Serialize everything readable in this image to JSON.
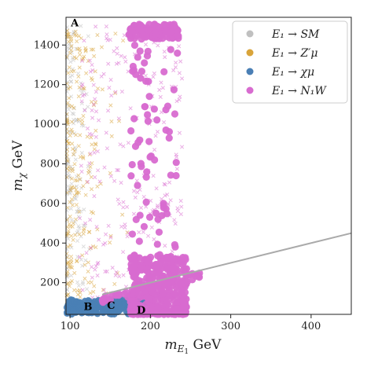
{
  "chart_data": {
    "type": "scatter",
    "xlabel": "m_{E_1} GeV",
    "ylabel": "m_χ GeV",
    "xlim": [
      95,
      450
    ],
    "ylim": [
      40,
      1540
    ],
    "xticks": [
      100,
      200,
      300,
      400
    ],
    "yticks": [
      200,
      400,
      600,
      800,
      1000,
      1200,
      1400
    ],
    "grid": false,
    "legend": {
      "placement": "top-right",
      "entries": [
        {
          "label": "E₁ → SM",
          "color": "#c0c0c0"
        },
        {
          "label": "E₁ → Z′μ",
          "color": "#d9a43a"
        },
        {
          "label": "E₁ → χμ",
          "color": "#4a7fb5"
        },
        {
          "label": "E₁ → N₁W",
          "color": "#d86cd0"
        }
      ]
    },
    "line": {
      "name": "",
      "color": "#aaaaaa",
      "x": [
        140,
        450
      ],
      "y": [
        140,
        450
      ]
    },
    "annotations": [
      {
        "text": "A",
        "x": 101,
        "y": 1495
      },
      {
        "text": "B",
        "x": 117,
        "y": 62
      },
      {
        "text": "C",
        "x": 146,
        "y": 67
      },
      {
        "text": "D",
        "x": 183,
        "y": 43
      }
    ],
    "series": [
      {
        "name": "E₁ → SM",
        "color": "#c0c0c0",
        "marker": "x",
        "region": {
          "x": [
            96,
            125
          ],
          "y": [
            40,
            1500
          ]
        },
        "count": 160
      },
      {
        "name": "E₁ → Z′μ",
        "color": "#d9a43a",
        "marker": "x",
        "region": {
          "x": [
            96,
            135
          ],
          "y": [
            40,
            1500
          ]
        },
        "count": 230
      },
      {
        "name": "E₁ → Z′μ (x>125)",
        "color": "#d9a43a",
        "marker": "x",
        "region": {
          "x": [
            125,
            175
          ],
          "y": [
            100,
            1500
          ]
        },
        "count": 25
      },
      {
        "name": "E₁ → N₁W (crosses)",
        "color": "#d86cd0",
        "marker": "x",
        "region": {
          "x": [
            110,
            240
          ],
          "y": [
            80,
            1500
          ]
        },
        "count": 260
      },
      {
        "name": "E₁ → χμ",
        "color": "#4a7fb5",
        "marker": "o",
        "region": {
          "x": [
            96,
            200
          ],
          "y": [
            40,
            115
          ]
        },
        "count": 220
      },
      {
        "name": "E₁ → N₁W dense band",
        "color": "#d86cd0",
        "marker": "o",
        "region": {
          "x": [
            175,
            245
          ],
          "y": [
            40,
            340
          ]
        },
        "count": 420
      },
      {
        "name": "E₁ → N₁W top band",
        "color": "#d86cd0",
        "marker": "o",
        "region": {
          "x": [
            172,
            235
          ],
          "y": [
            1430,
            1505
          ]
        },
        "count": 120
      },
      {
        "name": "E₁ → N₁W scattered",
        "color": "#d86cd0",
        "marker": "o",
        "region": {
          "x": [
            175,
            235
          ],
          "y": [
            340,
            1430
          ]
        },
        "count": 70
      },
      {
        "name": "E₁ → N₁W near line",
        "color": "#d86cd0",
        "marker": "o",
        "region": {
          "x": [
            140,
            262
          ],
          "y": [
            100,
            275
          ]
        },
        "count": 50
      }
    ]
  }
}
